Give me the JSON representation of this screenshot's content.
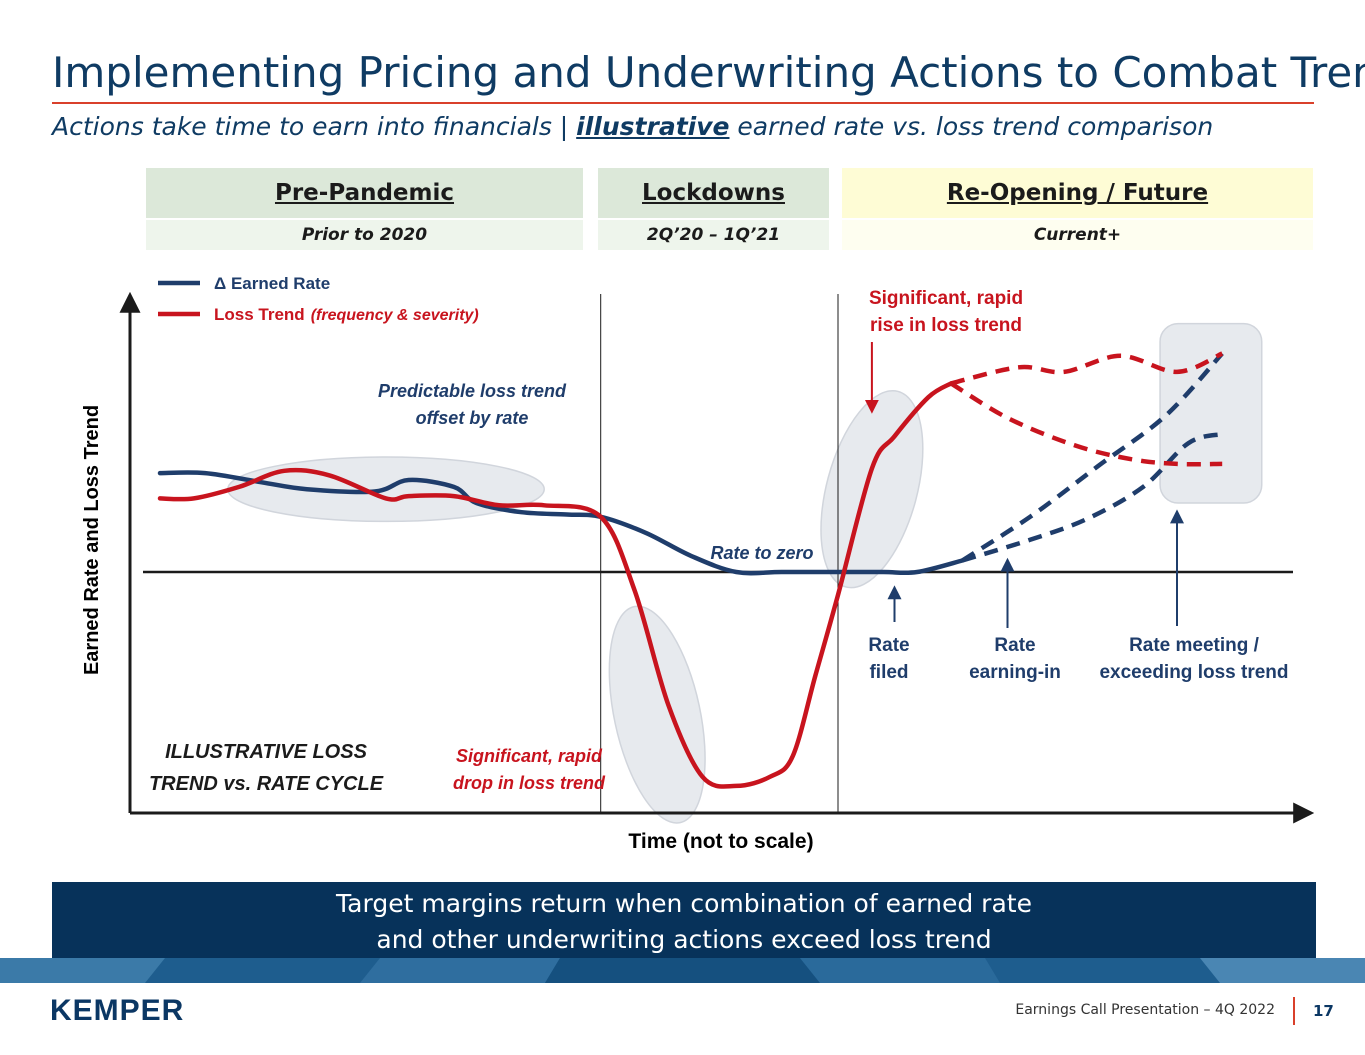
{
  "header": {
    "title": "Implementing Pricing and Underwriting Actions to Combat Trend",
    "subtitle_pre": "Actions take time to earn into financials  |  ",
    "subtitle_emph": "illustrative",
    "subtitle_post": " earned rate vs. loss trend comparison"
  },
  "phases": [
    {
      "label": "Pre-Pandemic",
      "period": "Prior to 2020"
    },
    {
      "label": "Lockdowns",
      "period": "2Q’20 – 1Q’21"
    },
    {
      "label": "Re-Opening / Future",
      "period": "Current+"
    }
  ],
  "colors": {
    "earned_rate": "#1f3d6b",
    "loss_trend": "#c8141e",
    "accent": "#d9402b",
    "banner": "#07325a"
  },
  "chart_data": {
    "type": "line",
    "title": "ILLUSTRATIVE LOSS TREND vs. RATE CYCLE",
    "title_lines": [
      "ILLUSTRATIVE LOSS",
      "TREND vs. RATE CYCLE"
    ],
    "xlabel": "Time (not to scale)",
    "ylabel": "Earned Rate and Loss Trend",
    "xlim": [
      0,
      100
    ],
    "ylim": [
      -100,
      100
    ],
    "legend": {
      "placement": "top-left",
      "entries": [
        {
          "label": "Δ Earned Rate",
          "suffix": "",
          "series": "earned_rate"
        },
        {
          "label": "Loss Trend",
          "suffix": "(frequency & severity)",
          "series": "loss_trend"
        }
      ]
    },
    "phase_boundaries": [
      39,
      60
    ],
    "series": [
      {
        "name": "Δ Earned Rate",
        "key": "earned_rate",
        "style": "solid",
        "points": [
          [
            0,
            43
          ],
          [
            4,
            43
          ],
          [
            9,
            39
          ],
          [
            13,
            36
          ],
          [
            19,
            35
          ],
          [
            22,
            40
          ],
          [
            26,
            37
          ],
          [
            28,
            30
          ],
          [
            32,
            26
          ],
          [
            36,
            25
          ],
          [
            39,
            24
          ],
          [
            43,
            17
          ],
          [
            47,
            7
          ],
          [
            51,
            0
          ],
          [
            55,
            0
          ],
          [
            60,
            0
          ],
          [
            64,
            0
          ],
          [
            67,
            0
          ],
          [
            71,
            5
          ]
        ]
      },
      {
        "name": "Δ Earned Rate (projection A)",
        "key": "earned_rate",
        "style": "dashed",
        "points": [
          [
            71,
            5
          ],
          [
            77,
            24
          ],
          [
            83,
            46
          ],
          [
            89,
            68
          ],
          [
            94,
            95
          ]
        ]
      },
      {
        "name": "Δ Earned Rate (projection B)",
        "key": "earned_rate",
        "style": "dashed",
        "points": [
          [
            71,
            5
          ],
          [
            77,
            14
          ],
          [
            82,
            23
          ],
          [
            87,
            37
          ],
          [
            91,
            56
          ],
          [
            94,
            60
          ]
        ]
      },
      {
        "name": "Loss Trend",
        "key": "loss_trend",
        "style": "solid",
        "points": [
          [
            0,
            32
          ],
          [
            3,
            32
          ],
          [
            7,
            37
          ],
          [
            11,
            44
          ],
          [
            15,
            42
          ],
          [
            20,
            32
          ],
          [
            22,
            33
          ],
          [
            26,
            33
          ],
          [
            30,
            29
          ],
          [
            34,
            29
          ],
          [
            39,
            24
          ],
          [
            42,
            -8
          ],
          [
            45,
            -58
          ],
          [
            48,
            -89
          ],
          [
            51,
            -93
          ],
          [
            54,
            -89
          ],
          [
            56,
            -80
          ],
          [
            58,
            -45
          ],
          [
            60,
            -10
          ],
          [
            63,
            45
          ],
          [
            65,
            59
          ],
          [
            68,
            76
          ],
          [
            70,
            82
          ]
        ]
      },
      {
        "name": "Loss Trend (projection A)",
        "key": "loss_trend",
        "style": "dashed",
        "points": [
          [
            70,
            82
          ],
          [
            76,
            89
          ],
          [
            80,
            87
          ],
          [
            85,
            94
          ],
          [
            90,
            87
          ],
          [
            94,
            95
          ]
        ]
      },
      {
        "name": "Loss Trend (projection B)",
        "key": "loss_trend",
        "style": "dashed",
        "points": [
          [
            70,
            82
          ],
          [
            75,
            67
          ],
          [
            81,
            55
          ],
          [
            86,
            49
          ],
          [
            90,
            47
          ],
          [
            94,
            47
          ]
        ]
      }
    ],
    "highlight_regions": [
      {
        "name": "pre-pandemic-oval",
        "cx": 20,
        "cy": 36,
        "rx": 14,
        "ry": 14
      },
      {
        "name": "drop-oval",
        "cx": 44,
        "cy": -62,
        "rx": 3.8,
        "ry": 48
      },
      {
        "name": "rise-oval",
        "cx": 63,
        "cy": 36,
        "rx": 4,
        "ry": 44
      },
      {
        "name": "meeting-box",
        "x0": 88.5,
        "x1": 97.5,
        "y0": 30,
        "y1": 108
      }
    ],
    "annotations": [
      {
        "key": "predictable",
        "lines": [
          "Predictable loss trend",
          "offset by rate"
        ],
        "series": "earned_rate",
        "italic": true
      },
      {
        "key": "rate_zero",
        "lines": [
          "Rate to zero"
        ],
        "series": "earned_rate",
        "italic": true
      },
      {
        "key": "drop",
        "lines": [
          "Significant, rapid",
          "drop in loss trend"
        ],
        "series": "loss_trend",
        "italic": true
      },
      {
        "key": "rise",
        "lines": [
          "Significant, rapid",
          "rise in loss trend"
        ],
        "series": "loss_trend",
        "italic": false,
        "arrow_at": [
          63,
          70
        ]
      },
      {
        "key": "rate_filed",
        "lines": [
          "Rate",
          "filed"
        ],
        "series": "earned_rate",
        "italic": false,
        "arrow_at": [
          65,
          -7
        ]
      },
      {
        "key": "rate_earning",
        "lines": [
          "Rate",
          "earning-in"
        ],
        "series": "earned_rate",
        "italic": false,
        "arrow_at": [
          75,
          5
        ]
      },
      {
        "key": "rate_meeting",
        "lines": [
          "Rate meeting /",
          "exceeding loss trend"
        ],
        "series": "earned_rate",
        "italic": false,
        "arrow_at": [
          90,
          26
        ]
      }
    ]
  },
  "banner": {
    "line1": "Target margins return when combination of earned rate",
    "line2": "and other underwriting actions exceed loss trend"
  },
  "footer": {
    "logo": "KEMPER",
    "presentation": "Earnings Call Presentation – 4Q 2022",
    "page": "17"
  }
}
